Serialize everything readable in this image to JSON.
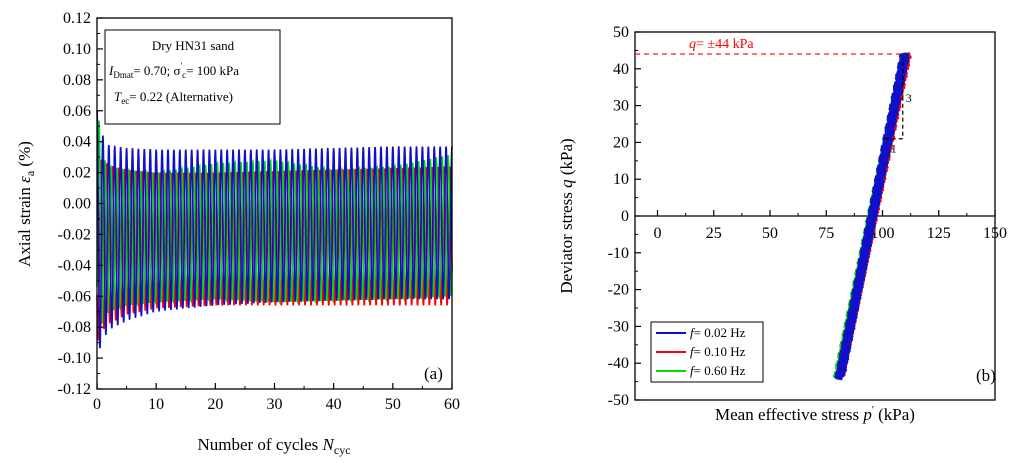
{
  "chart_data": [
    {
      "type": "line",
      "panel_label": "(a)",
      "xlabel": "Number of cycles N_cyc",
      "xlabel_main": "Number of cycles ",
      "xlabel_var": "N",
      "xlabel_sub": "cyc",
      "ylabel": "Axial strain ε_a (%)",
      "ylabel_main": "Axial strain ",
      "ylabel_var": "ε",
      "ylabel_sub": "a",
      "ylabel_unit": " (%)",
      "xlim": [
        0,
        60
      ],
      "ylim": [
        -0.12,
        0.12
      ],
      "x_ticks": [
        0,
        10,
        20,
        30,
        40,
        50,
        60
      ],
      "x_tick_labels": [
        "0",
        "10",
        "20",
        "30",
        "40",
        "50",
        "60"
      ],
      "y_ticks": [
        -0.12,
        -0.1,
        -0.08,
        -0.06,
        -0.04,
        -0.02,
        0.0,
        0.02,
        0.04,
        0.06,
        0.08,
        0.1,
        0.12
      ],
      "y_tick_labels": [
        "-0.12",
        "-0.10",
        "-0.08",
        "-0.06",
        "-0.04",
        "-0.02",
        "0.00",
        "0.02",
        "0.04",
        "0.06",
        "0.08",
        "0.10",
        "0.12"
      ],
      "annotation_lines": {
        "line1": "Dry HN31 sand",
        "line2_a": "I",
        "line2_sub": "Dmat",
        "line2_b": "= 0.70; σ",
        "line2_sup": "'",
        "line2_sub2": "c",
        "line2_c": "= 100 kPa",
        "line3_a": "T",
        "line3_sub": "ec",
        "line3_b": "= 0.22 (Alternative)"
      },
      "series": [
        {
          "color": "#ff0000",
          "cycles": 60,
          "envelope": {
            "x": [
              0,
              1,
              2,
              5,
              10,
              20,
              30,
              40,
              50,
              60
            ],
            "y_max": [
              0.03,
              0.028,
              0.025,
              0.022,
              0.02,
              0.02,
              0.021,
              0.022,
              0.023,
              0.024
            ],
            "y_min": [
              -0.09,
              -0.082,
              -0.078,
              -0.072,
              -0.068,
              -0.066,
              -0.066,
              -0.066,
              -0.066,
              -0.066
            ]
          }
        },
        {
          "color": "#00dd00",
          "cycles": 60,
          "envelope": {
            "x": [
              0,
              1,
              2,
              5,
              10,
              20,
              30,
              40,
              50,
              60
            ],
            "y_max": [
              0.066,
              0.03,
              0.024,
              0.022,
              0.02,
              0.026,
              0.028,
              0.022,
              0.024,
              0.032
            ],
            "y_min": [
              -0.09,
              -0.075,
              -0.07,
              -0.066,
              -0.064,
              -0.062,
              -0.064,
              -0.063,
              -0.062,
              -0.06
            ]
          }
        },
        {
          "color": "#1010c8",
          "cycles": 60,
          "envelope": {
            "x": [
              0,
              1,
              2,
              5,
              10,
              20,
              30,
              40,
              50,
              60
            ],
            "y_max": [
              0.06,
              0.044,
              0.038,
              0.036,
              0.035,
              0.035,
              0.035,
              0.036,
              0.037,
              0.037
            ],
            "y_min": [
              -0.1,
              -0.088,
              -0.082,
              -0.076,
              -0.07,
              -0.066,
              -0.064,
              -0.063,
              -0.062,
              -0.062
            ]
          }
        }
      ]
    },
    {
      "type": "line",
      "panel_label": "(b)",
      "xlabel": "Mean effective stress p' (kPa)",
      "xlabel_main": "Mean effective stress ",
      "xlabel_var": "p",
      "xlabel_sup": "'",
      "xlabel_unit": " (kPa)",
      "ylabel": "Deviator stress q (kPa)",
      "ylabel_main": "Deviator stress ",
      "ylabel_var": "q",
      "ylabel_unit": " (kPa)",
      "xlim": [
        -10,
        150
      ],
      "ylim": [
        -50,
        50
      ],
      "x_ticks": [
        0,
        25,
        50,
        75,
        100,
        125,
        150
      ],
      "x_tick_labels": [
        "0",
        "25",
        "50",
        "75",
        "100",
        "125",
        "150"
      ],
      "y_ticks": [
        -50,
        -40,
        -30,
        -20,
        -10,
        0,
        10,
        20,
        30,
        40,
        50
      ],
      "y_tick_labels": [
        "-50",
        "-40",
        "-30",
        "-20",
        "-10",
        "0",
        "10",
        "20",
        "30",
        "40",
        "50"
      ],
      "q_line": {
        "value": 44,
        "label_var": "q",
        "label_text": "= ±44 kPa",
        "color": "#ff0000"
      },
      "slope_triangle": {
        "rise_label": "3",
        "run_label": "1",
        "x": [
          101,
          109
        ],
        "y": [
          21,
          43
        ]
      },
      "legend": {
        "position": "bottom-left",
        "items": [
          {
            "var": "f",
            "text": "= 0.02 Hz",
            "color": "#1010c8"
          },
          {
            "var": "f",
            "text": "= 0.10 Hz",
            "color": "#ff0000"
          },
          {
            "var": "f",
            "text": "= 0.60 Hz",
            "color": "#00dd00"
          }
        ]
      },
      "series": [
        {
          "name": "f = 0.60 Hz",
          "color": "#00dd00",
          "p": [
            80,
            110
          ],
          "q": [
            -44,
            44
          ]
        },
        {
          "name": "f = 0.10 Hz",
          "color": "#ff0000",
          "p": [
            81,
            111
          ],
          "q": [
            -44,
            44
          ]
        },
        {
          "name": "f = 0.02 Hz",
          "color": "#1010c8",
          "p": [
            81,
            110
          ],
          "q": [
            -44,
            44
          ]
        }
      ]
    }
  ]
}
